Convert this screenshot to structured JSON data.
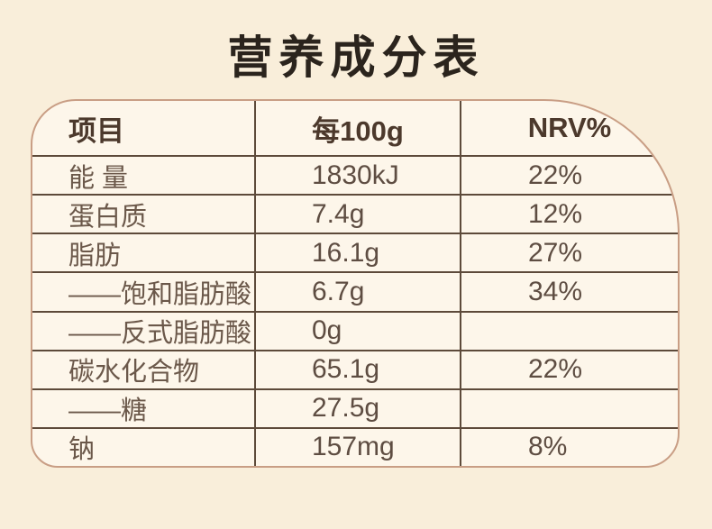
{
  "title": "营养成分表",
  "table": {
    "columns": [
      "项目",
      "每100g",
      "NRV%"
    ],
    "rows": [
      {
        "item": "能 量",
        "per100g": "1830kJ",
        "nrv": "22%"
      },
      {
        "item": "蛋白质",
        "per100g": "7.4g",
        "nrv": "12%"
      },
      {
        "item": "脂肪",
        "per100g": "16.1g",
        "nrv": "27%"
      },
      {
        "item": "——饱和脂肪酸",
        "per100g": "6.7g",
        "nrv": "34%"
      },
      {
        "item": "——反式脂肪酸",
        "per100g": "0g",
        "nrv": ""
      },
      {
        "item": "碳水化合物",
        "per100g": "65.1g",
        "nrv": "22%"
      },
      {
        "item": "——糖",
        "per100g": "27.5g",
        "nrv": ""
      },
      {
        "item": "钠",
        "per100g": "157mg",
        "nrv": "8%"
      }
    ]
  },
  "colors": {
    "page-bg": "#f9eeda",
    "table-bg": "#fdf6ea",
    "outer-border": "#c99e85",
    "inner-border": "#5d4a3a",
    "title-color": "#2b241d",
    "header-text": "#4c392c",
    "label-text": "#6b584a",
    "value-text": "#5e4d42"
  }
}
